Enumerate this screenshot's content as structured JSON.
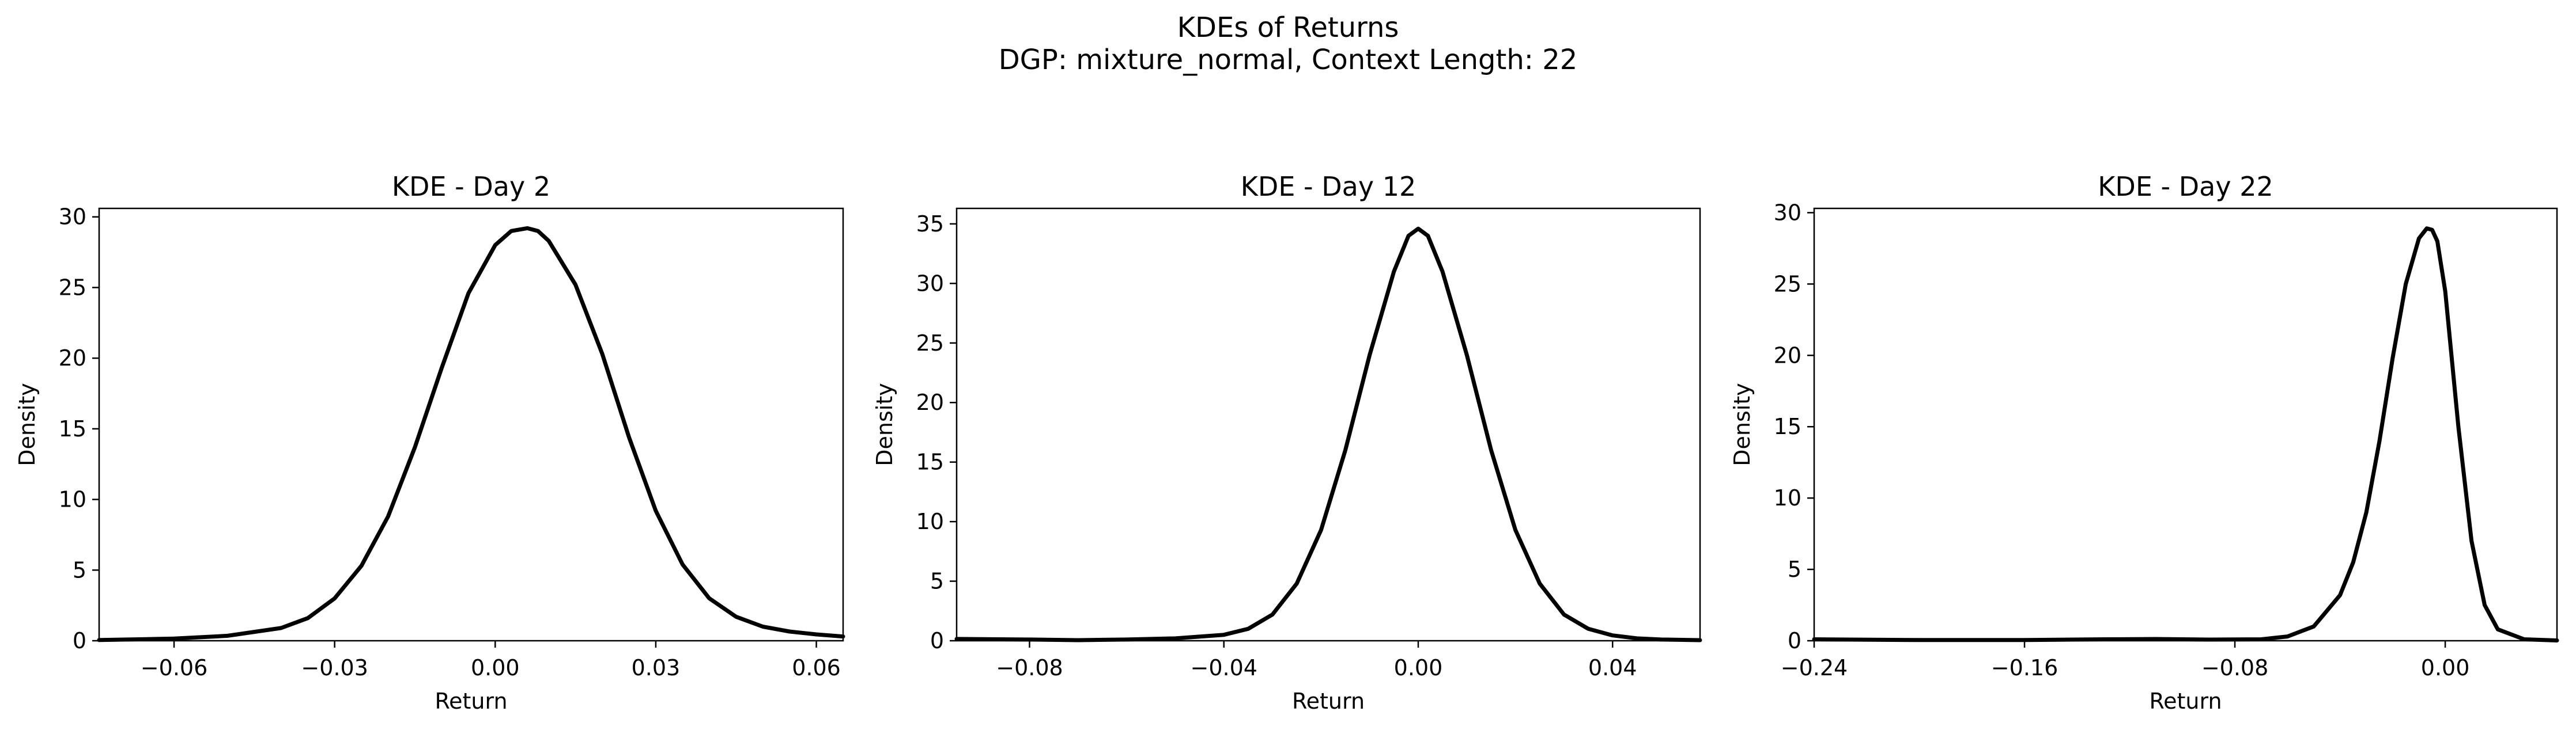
{
  "figure": {
    "title": "KDEs of Returns",
    "subtitle": "DGP: mixture_normal, Context Length: 22"
  },
  "chart_data": [
    {
      "type": "line",
      "title": "KDE - Day 2",
      "xlabel": "Return",
      "ylabel": "Density",
      "xlim": [
        -0.074,
        0.065
      ],
      "ylim": [
        0,
        30.6
      ],
      "xticks": [
        -0.06,
        -0.03,
        0.0,
        0.03,
        0.06
      ],
      "xtick_labels": [
        "−0.06",
        "−0.03",
        "0.00",
        "0.03",
        "0.06"
      ],
      "yticks": [
        0,
        5,
        10,
        15,
        20,
        25,
        30
      ],
      "ytick_labels": [
        "0",
        "5",
        "10",
        "15",
        "20",
        "25",
        "30"
      ],
      "grid": false,
      "series": [
        {
          "color": "#000000",
          "x": [
            -0.074,
            -0.06,
            -0.05,
            -0.04,
            -0.035,
            -0.03,
            -0.025,
            -0.02,
            -0.015,
            -0.01,
            -0.005,
            0.0,
            0.003,
            0.006,
            0.008,
            0.01,
            0.015,
            0.02,
            0.025,
            0.03,
            0.035,
            0.04,
            0.045,
            0.05,
            0.055,
            0.06,
            0.065
          ],
          "y": [
            0.05,
            0.15,
            0.35,
            0.9,
            1.6,
            3.0,
            5.3,
            8.8,
            13.7,
            19.3,
            24.6,
            28.0,
            29.0,
            29.2,
            29.0,
            28.3,
            25.2,
            20.3,
            14.4,
            9.2,
            5.4,
            3.0,
            1.7,
            1.0,
            0.65,
            0.45,
            0.3
          ]
        }
      ]
    },
    {
      "type": "line",
      "title": "KDE - Day 12",
      "xlabel": "Return",
      "ylabel": "Density",
      "xlim": [
        -0.095,
        0.058
      ],
      "ylim": [
        0,
        36.3
      ],
      "xticks": [
        -0.08,
        -0.04,
        0.0,
        0.04
      ],
      "xtick_labels": [
        "−0.08",
        "−0.04",
        "0.00",
        "0.04"
      ],
      "yticks": [
        0,
        5,
        10,
        15,
        20,
        25,
        30,
        35
      ],
      "ytick_labels": [
        "0",
        "5",
        "10",
        "15",
        "20",
        "25",
        "30",
        "35"
      ],
      "grid": false,
      "series": [
        {
          "color": "#000000",
          "x": [
            -0.095,
            -0.08,
            -0.07,
            -0.06,
            -0.05,
            -0.04,
            -0.035,
            -0.03,
            -0.025,
            -0.02,
            -0.015,
            -0.01,
            -0.005,
            -0.002,
            0.0,
            0.002,
            0.005,
            0.01,
            0.015,
            0.02,
            0.025,
            0.03,
            0.035,
            0.04,
            0.045,
            0.05,
            0.058
          ],
          "y": [
            0.15,
            0.1,
            0.05,
            0.1,
            0.2,
            0.5,
            1.0,
            2.2,
            4.8,
            9.3,
            16.0,
            24.0,
            31.0,
            34.0,
            34.6,
            34.0,
            31.0,
            24.0,
            16.0,
            9.3,
            4.8,
            2.2,
            1.0,
            0.45,
            0.2,
            0.1,
            0.05
          ]
        }
      ]
    },
    {
      "type": "line",
      "title": "KDE - Day 22",
      "xlabel": "Return",
      "ylabel": "Density",
      "xlim": [
        -0.24,
        0.0425
      ],
      "ylim": [
        0,
        30.3
      ],
      "xticks": [
        -0.24,
        -0.16,
        -0.08,
        0.0
      ],
      "xtick_labels": [
        "−0.24",
        "−0.16",
        "−0.08",
        "0.00"
      ],
      "yticks": [
        0,
        5,
        10,
        15,
        20,
        25,
        30
      ],
      "ytick_labels": [
        "0",
        "5",
        "10",
        "15",
        "20",
        "25",
        "30"
      ],
      "grid": false,
      "series": [
        {
          "color": "#000000",
          "x": [
            -0.24,
            -0.2,
            -0.16,
            -0.13,
            -0.11,
            -0.09,
            -0.07,
            -0.06,
            -0.05,
            -0.04,
            -0.035,
            -0.03,
            -0.025,
            -0.02,
            -0.015,
            -0.01,
            -0.007,
            -0.005,
            -0.003,
            0.0,
            0.005,
            0.01,
            0.015,
            0.02,
            0.03,
            0.0425
          ],
          "y": [
            0.1,
            0.05,
            0.05,
            0.1,
            0.12,
            0.08,
            0.1,
            0.3,
            1.0,
            3.2,
            5.5,
            9.0,
            14.0,
            19.8,
            25.0,
            28.2,
            28.9,
            28.8,
            28.0,
            24.5,
            15.0,
            7.0,
            2.5,
            0.8,
            0.1,
            0.02
          ]
        }
      ]
    }
  ]
}
